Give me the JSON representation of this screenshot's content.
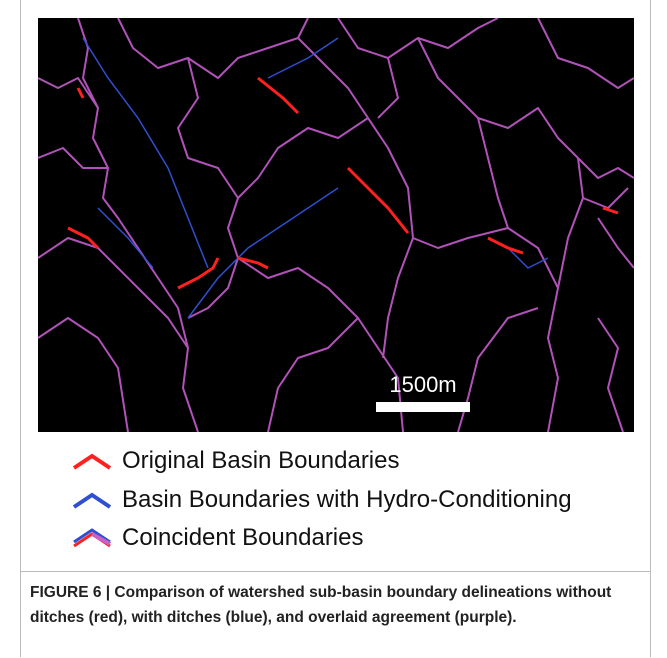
{
  "figure": {
    "scale_bar_label": "1500m"
  },
  "legend": {
    "items": [
      "Original Basin Boundaries",
      "Basin Boundaries with Hydro-Conditioning",
      "Coincident Boundaries"
    ]
  },
  "caption": "FIGURE 6 | Comparison of watershed sub-basin boundary delineations without ditches (red), with ditches (blue), and overlaid agreement (purple)."
}
